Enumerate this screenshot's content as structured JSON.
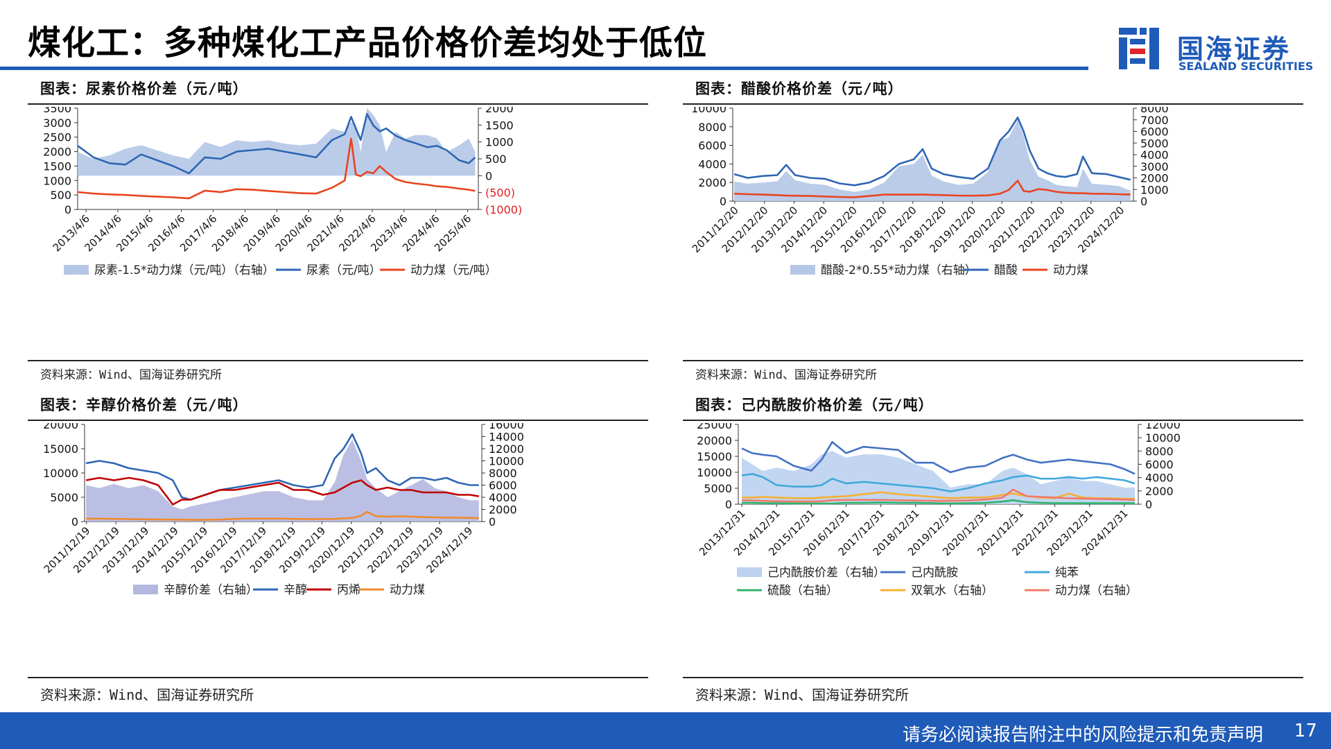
{
  "header": {
    "title": "煤化工：多种煤化工产品价格价差均处于低位"
  },
  "logo": {
    "cn": "国海证券",
    "en": "SEALAND SECURITIES"
  },
  "footer": {
    "disclaimer": "请务必阅读报告附注中的风险提示和免责声明",
    "page_number": "17"
  },
  "panels": [
    {
      "title": "图表：尿素价格价差（元/吨）",
      "source": "资料来源：Wind、国海证券研究所"
    },
    {
      "title": "图表：醋酸价格价差（元/吨）",
      "source": "资料来源：Wind、国海证券研究所"
    },
    {
      "title": "图表：辛醇价格价差（元/吨）",
      "source": "资料来源：Wind、国海证券研究所"
    },
    {
      "title": "图表：己内酰胺价格价差（元/吨）",
      "source": "资料来源：Wind、国海证券研究所"
    }
  ],
  "chart_data": [
    {
      "type": "line",
      "left_ticks": [
        "3500",
        "3000",
        "2500",
        "2000",
        "1500",
        "1000",
        "500",
        "0"
      ],
      "right_ticks": [
        "2000",
        "1500",
        "1000",
        "500",
        "0",
        "(500)",
        "(1000)"
      ],
      "ylim_left": [
        0,
        3500
      ],
      "ylim_right": [
        -1000,
        2000
      ],
      "x_ticks": [
        "2013/4/6",
        "2014/4/6",
        "2015/4/6",
        "2016/4/6",
        "2017/4/6",
        "2018/4/6",
        "2019/4/6",
        "2020/4/6",
        "2021/4/6",
        "2022/4/6",
        "2023/4/6",
        "2024/4/6",
        "2025/4/6"
      ],
      "x": [
        2013.0,
        2013.5,
        2014.0,
        2014.5,
        2015.0,
        2015.5,
        2016.0,
        2016.5,
        2017.0,
        2017.5,
        2018.0,
        2018.5,
        2019.0,
        2019.5,
        2020.0,
        2020.5,
        2021.0,
        2021.4,
        2021.6,
        2021.75,
        2021.9,
        2022.1,
        2022.3,
        2022.5,
        2022.7,
        2023.0,
        2023.3,
        2023.6,
        2024.0,
        2024.3,
        2024.6,
        2025.0,
        2025.3,
        2025.5
      ],
      "colors": {
        "area": "#b4c7e7",
        "urea": "#2e66b3",
        "coal": "#e8441f",
        "negative_ticks": "#e02020"
      },
      "series": [
        {
          "name": "尿素-1.5*动力煤（元/吨）（右轴）",
          "axis": "right",
          "kind": "area",
          "values": [
            700,
            500,
            600,
            800,
            900,
            750,
            600,
            500,
            1000,
            850,
            1050,
            1000,
            1050,
            950,
            900,
            950,
            1400,
            1300,
            1600,
            1500,
            700,
            2000,
            1800,
            1500,
            700,
            1300,
            1100,
            1200,
            1200,
            1100,
            700,
            900,
            1100,
            700
          ]
        },
        {
          "name": "尿素（元/吨）",
          "axis": "left",
          "kind": "line",
          "values": [
            2200,
            1800,
            1600,
            1550,
            1900,
            1700,
            1500,
            1250,
            1800,
            1750,
            2000,
            2050,
            2100,
            2000,
            1900,
            1800,
            2400,
            2600,
            3200,
            2800,
            2400,
            3300,
            2900,
            2700,
            2800,
            2550,
            2400,
            2300,
            2150,
            2200,
            2050,
            1700,
            1600,
            1800
          ]
        },
        {
          "name": "动力煤（元/吨）",
          "axis": "left",
          "kind": "line",
          "values": [
            600,
            550,
            520,
            500,
            470,
            440,
            420,
            380,
            650,
            600,
            700,
            680,
            640,
            600,
            560,
            550,
            750,
            1000,
            2450,
            1200,
            1150,
            1300,
            1250,
            1500,
            1300,
            1050,
            950,
            900,
            850,
            800,
            780,
            720,
            680,
            640
          ]
        }
      ]
    },
    {
      "type": "line",
      "left_ticks": [
        "10000",
        "8000",
        "6000",
        "4000",
        "2000",
        "0"
      ],
      "right_ticks": [
        "8000",
        "7000",
        "6000",
        "5000",
        "4000",
        "3000",
        "2000",
        "1000",
        "0"
      ],
      "ylim_left": [
        0,
        10000
      ],
      "ylim_right": [
        0,
        8000
      ],
      "x_ticks": [
        "2011/12/20",
        "2012/12/20",
        "2013/12/20",
        "2014/12/20",
        "2015/12/20",
        "2016/12/20",
        "2017/12/20",
        "2018/12/20",
        "2019/12/20",
        "2020/12/20",
        "2021/12/20",
        "2022/12/20",
        "2023/12/20",
        "2024/12/20"
      ],
      "x": [
        2011.95,
        2012.4,
        2012.9,
        2013.4,
        2013.7,
        2014.0,
        2014.5,
        2015.0,
        2015.5,
        2016.0,
        2016.5,
        2017.0,
        2017.5,
        2018.0,
        2018.3,
        2018.6,
        2019.0,
        2019.5,
        2020.0,
        2020.5,
        2020.9,
        2021.2,
        2021.5,
        2021.7,
        2021.9,
        2022.2,
        2022.5,
        2022.8,
        2023.1,
        2023.5,
        2023.7,
        2024.0,
        2024.5,
        2024.9,
        2025.3
      ],
      "colors": {
        "area": "#b4c7e7",
        "acetic_acid": "#2e66b3",
        "coal": "#e8441f"
      },
      "series": [
        {
          "name": "醋酸-2*0.55*动力煤（右轴）",
          "axis": "right",
          "kind": "area",
          "values": [
            1700,
            1500,
            1600,
            1700,
            2600,
            1800,
            1500,
            1400,
            1000,
            800,
            1000,
            1600,
            3000,
            3200,
            4000,
            2200,
            1700,
            1400,
            1500,
            2500,
            5200,
            5500,
            7000,
            5600,
            3600,
            2100,
            1800,
            1400,
            1300,
            1200,
            2800,
            1500,
            1400,
            1300,
            900
          ]
        },
        {
          "name": "醋酸",
          "axis": "left",
          "kind": "line",
          "values": [
            2900,
            2500,
            2700,
            2800,
            3900,
            2800,
            2500,
            2400,
            1900,
            1700,
            2000,
            2700,
            4000,
            4500,
            5600,
            3500,
            2900,
            2600,
            2400,
            3500,
            6500,
            7500,
            9000,
            7500,
            5500,
            3500,
            3000,
            2700,
            2600,
            2900,
            4800,
            3000,
            2900,
            2600,
            2300
          ]
        },
        {
          "name": "动力煤",
          "axis": "left",
          "kind": "line",
          "values": [
            800,
            750,
            700,
            650,
            600,
            580,
            550,
            500,
            450,
            420,
            550,
            700,
            700,
            700,
            700,
            680,
            650,
            600,
            580,
            620,
            800,
            1200,
            2200,
            1100,
            1000,
            1300,
            1200,
            1000,
            900,
            850,
            850,
            800,
            780,
            750,
            700
          ]
        }
      ]
    },
    {
      "type": "line",
      "left_ticks": [
        "20000",
        "15000",
        "10000",
        "5000",
        "0"
      ],
      "right_ticks": [
        "16000",
        "14000",
        "12000",
        "10000",
        "8000",
        "6000",
        "4000",
        "2000",
        "0"
      ],
      "ylim_left": [
        0,
        20000
      ],
      "ylim_right": [
        0,
        16000
      ],
      "x_ticks": [
        "2011/12/19",
        "2012/12/19",
        "2013/12/19",
        "2014/12/19",
        "2015/12/19",
        "2016/12/19",
        "2017/12/19",
        "2018/12/19",
        "2019/12/19",
        "2020/12/19",
        "2021/12/19",
        "2022/12/19",
        "2023/12/19",
        "2024/12/19"
      ],
      "x": [
        2011.95,
        2012.4,
        2012.9,
        2013.4,
        2013.9,
        2014.4,
        2014.9,
        2015.2,
        2015.5,
        2016.0,
        2016.5,
        2017.0,
        2017.5,
        2018.0,
        2018.5,
        2019.0,
        2019.5,
        2020.0,
        2020.4,
        2020.7,
        2021.0,
        2021.3,
        2021.5,
        2021.8,
        2022.2,
        2022.6,
        2023.0,
        2023.4,
        2023.8,
        2024.2,
        2024.6,
        2025.0,
        2025.3
      ],
      "colors": {
        "area": "#b4b8e0",
        "octanol": "#2e66b3",
        "propylene": "#c00000",
        "coal": "#f08a2c"
      },
      "series": [
        {
          "name": "辛醇价差（右轴）",
          "axis": "right",
          "kind": "area",
          "values": [
            6000,
            5500,
            6200,
            5500,
            6000,
            5000,
            2500,
            2000,
            2500,
            3000,
            3500,
            4000,
            4500,
            5000,
            5000,
            4000,
            3500,
            3500,
            6500,
            11000,
            13500,
            10000,
            7000,
            5500,
            4000,
            5000,
            6000,
            7000,
            5500,
            5000,
            4000,
            3500,
            3500
          ]
        },
        {
          "name": "辛醇",
          "axis": "left",
          "kind": "line",
          "values": [
            12000,
            12500,
            12000,
            11000,
            10500,
            10000,
            8500,
            5000,
            4500,
            5500,
            6500,
            7000,
            7500,
            8000,
            8500,
            7500,
            7000,
            7500,
            13000,
            15000,
            18000,
            14000,
            10000,
            11000,
            8500,
            7500,
            9000,
            9000,
            8500,
            9000,
            8000,
            7500,
            7500
          ]
        },
        {
          "name": "丙烯",
          "axis": "left",
          "kind": "line",
          "values": [
            8500,
            9000,
            8500,
            9000,
            8500,
            7500,
            3500,
            4500,
            4500,
            5500,
            6500,
            6500,
            7000,
            7500,
            8000,
            6500,
            6500,
            5500,
            6000,
            7000,
            8000,
            8500,
            7500,
            6500,
            7000,
            6500,
            6500,
            6000,
            6000,
            6000,
            5500,
            5500,
            5200
          ]
        },
        {
          "name": "动力煤",
          "axis": "left",
          "kind": "line",
          "values": [
            600,
            600,
            550,
            500,
            450,
            420,
            400,
            380,
            350,
            350,
            400,
            550,
            600,
            600,
            600,
            550,
            520,
            500,
            550,
            650,
            750,
            1200,
            2000,
            1100,
            1000,
            1100,
            1000,
            900,
            850,
            800,
            800,
            750,
            700
          ]
        }
      ]
    },
    {
      "type": "line",
      "left_ticks": [
        "25000",
        "20000",
        "15000",
        "10000",
        "5000",
        "0"
      ],
      "right_ticks": [
        "12000",
        "10000",
        "8000",
        "6000",
        "4000",
        "2000",
        "0"
      ],
      "ylim_left": [
        0,
        25000
      ],
      "ylim_right": [
        0,
        12000
      ],
      "x_ticks": [
        "2013/12/31",
        "2014/12/31",
        "2015/12/31",
        "2016/12/31",
        "2017/12/31",
        "2018/12/31",
        "2019/12/31",
        "2020/12/31",
        "2021/12/31",
        "2022/12/31",
        "2023/12/31",
        "2024/12/31"
      ],
      "x": [
        2014.0,
        2014.3,
        2014.6,
        2015.0,
        2015.5,
        2016.0,
        2016.3,
        2016.6,
        2017.0,
        2017.5,
        2018.0,
        2018.5,
        2019.0,
        2019.5,
        2020.0,
        2020.5,
        2021.0,
        2021.5,
        2021.8,
        2022.2,
        2022.6,
        2023.0,
        2023.4,
        2023.8,
        2024.2,
        2024.6,
        2025.0,
        2025.3
      ],
      "colors": {
        "area": "#bcd2f0",
        "caprolactam": "#4472c4",
        "benzene": "#41a8dc",
        "sulfuric_acid": "#2fb36a",
        "hydrogen_peroxide": "#f5b030",
        "coal": "#f07a6a"
      },
      "series": [
        {
          "name": "己内酰胺价差（右轴）",
          "axis": "right",
          "kind": "area",
          "values": [
            7000,
            6000,
            5000,
            5500,
            5000,
            6000,
            7500,
            8000,
            7000,
            7500,
            7500,
            7000,
            6000,
            5000,
            2500,
            3000,
            3000,
            5000,
            5500,
            4500,
            3000,
            3500,
            4000,
            3500,
            3500,
            3000,
            2500,
            2500
          ]
        },
        {
          "name": "己内酰胺",
          "axis": "left",
          "kind": "line",
          "values": [
            17500,
            16000,
            15500,
            15000,
            12000,
            10500,
            14000,
            19500,
            16000,
            18000,
            17500,
            17000,
            13000,
            13000,
            10000,
            11500,
            12000,
            14500,
            15500,
            14000,
            13000,
            13500,
            14000,
            13500,
            13000,
            12500,
            11000,
            9500
          ]
        },
        {
          "name": "纯苯",
          "axis": "left",
          "kind": "line",
          "values": [
            9000,
            9500,
            8500,
            6000,
            5500,
            5500,
            6000,
            8000,
            6500,
            7000,
            6500,
            6000,
            5500,
            5000,
            4000,
            5000,
            6500,
            7500,
            8500,
            9000,
            8000,
            8000,
            8500,
            8000,
            8500,
            8000,
            7500,
            6500
          ]
        },
        {
          "name": "硫酸（右轴）",
          "axis": "right",
          "kind": "line",
          "values": [
            200,
            200,
            150,
            150,
            100,
            100,
            100,
            100,
            200,
            200,
            250,
            200,
            200,
            150,
            100,
            150,
            200,
            400,
            600,
            300,
            200,
            150,
            150,
            150,
            150,
            150,
            150,
            150
          ]
        },
        {
          "name": "双氧水（右轴）",
          "axis": "right",
          "kind": "line",
          "values": [
            1000,
            1000,
            1100,
            1000,
            900,
            900,
            1000,
            1100,
            1200,
            1500,
            1800,
            1500,
            1300,
            1100,
            900,
            1000,
            1000,
            1400,
            1600,
            1200,
            1000,
            900,
            1600,
            1000,
            900,
            900,
            800,
            800
          ]
        },
        {
          "name": "动力煤（右轴）",
          "axis": "right",
          "kind": "line",
          "values": [
            600,
            550,
            500,
            450,
            400,
            400,
            450,
            600,
            650,
            650,
            650,
            600,
            550,
            500,
            500,
            550,
            700,
            1000,
            2200,
            1200,
            1100,
            1000,
            900,
            850,
            800,
            750,
            700,
            650
          ]
        }
      ]
    }
  ],
  "legends": [
    [
      {
        "label": "尿素-1.5*动力煤（元/吨）（右轴）",
        "kind": "area",
        "color": "#b4c7e7"
      },
      {
        "label": "尿素（元/吨）",
        "kind": "line",
        "color": "#2e66b3"
      },
      {
        "label": "动力煤（元/吨）",
        "kind": "line",
        "color": "#e8441f"
      }
    ],
    [
      {
        "label": "醋酸-2*0.55*动力煤（右轴）",
        "kind": "area",
        "color": "#b4c7e7"
      },
      {
        "label": "醋酸",
        "kind": "line",
        "color": "#2e66b3"
      },
      {
        "label": "动力煤",
        "kind": "line",
        "color": "#e8441f"
      }
    ],
    [
      {
        "label": "辛醇价差（右轴）",
        "kind": "area",
        "color": "#b4b8e0"
      },
      {
        "label": "辛醇",
        "kind": "line",
        "color": "#2e66b3"
      },
      {
        "label": "丙烯",
        "kind": "line",
        "color": "#c00000"
      },
      {
        "label": "动力煤",
        "kind": "line",
        "color": "#f08a2c"
      }
    ],
    [
      {
        "label": "己内酰胺价差（右轴）",
        "kind": "area",
        "color": "#bcd2f0"
      },
      {
        "label": "己内酰胺",
        "kind": "line",
        "color": "#4472c4"
      },
      {
        "label": "纯苯",
        "kind": "line",
        "color": "#41a8dc"
      },
      {
        "label": "硫酸（右轴）",
        "kind": "line",
        "color": "#2fb36a"
      },
      {
        "label": "双氧水（右轴）",
        "kind": "line",
        "color": "#f5b030"
      },
      {
        "label": "动力煤（右轴）",
        "kind": "line",
        "color": "#f07a6a"
      }
    ]
  ]
}
